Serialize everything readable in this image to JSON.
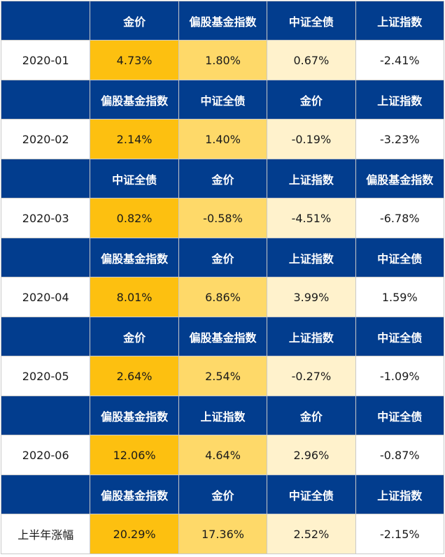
{
  "colors": {
    "header_bg": "#023d8e",
    "header_text": "#ffffff",
    "rank_1": "#fdc010",
    "rank_2": "#fed969",
    "rank_3": "#fff2cc",
    "rank_4": "#ffffff",
    "border": "#c9c9c9"
  },
  "chart_data": {
    "type": "table",
    "title": "",
    "rows": [
      {
        "period": "2020-01",
        "assets": [
          "金价",
          "偏股基金指数",
          "中证全债",
          "上证指数"
        ],
        "returns": [
          "4.73%",
          "1.80%",
          "0.67%",
          "-2.41%"
        ]
      },
      {
        "period": "2020-02",
        "assets": [
          "偏股基金指数",
          "中证全债",
          "金价",
          "上证指数"
        ],
        "returns": [
          "2.14%",
          "1.40%",
          "-0.19%",
          "-3.23%"
        ]
      },
      {
        "period": "2020-03",
        "assets": [
          "中证全债",
          "金价",
          "上证指数",
          "偏股基金指数"
        ],
        "returns": [
          "0.82%",
          "-0.58%",
          "-4.51%",
          "-6.78%"
        ]
      },
      {
        "period": "2020-04",
        "assets": [
          "偏股基金指数",
          "金价",
          "上证指数",
          "中证全债"
        ],
        "returns": [
          "8.01%",
          "6.86%",
          "3.99%",
          "1.59%"
        ]
      },
      {
        "period": "2020-05",
        "assets": [
          "金价",
          "偏股基金指数",
          "上证指数",
          "中证全债"
        ],
        "returns": [
          "2.64%",
          "2.54%",
          "-0.27%",
          "-1.09%"
        ]
      },
      {
        "period": "2020-06",
        "assets": [
          "偏股基金指数",
          "上证指数",
          "金价",
          "中证全债"
        ],
        "returns": [
          "12.06%",
          "4.64%",
          "2.96%",
          "-0.87%"
        ]
      },
      {
        "period": "上半年涨幅",
        "assets": [
          "偏股基金指数",
          "金价",
          "中证全债",
          "上证指数"
        ],
        "returns": [
          "20.29%",
          "17.36%",
          "2.52%",
          "-2.15%"
        ]
      }
    ]
  }
}
